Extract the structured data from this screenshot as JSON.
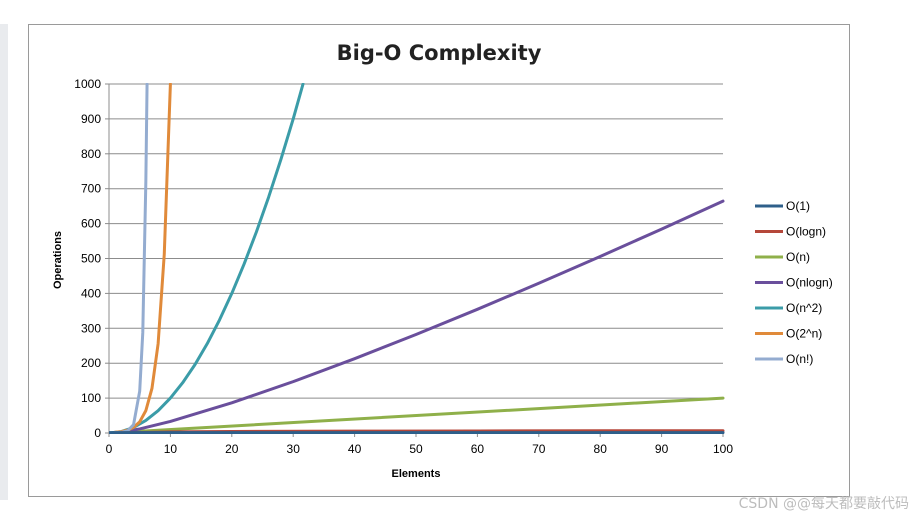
{
  "watermark": "CSDN @@每天都要敲代码",
  "chart_data": {
    "type": "line",
    "title": "Big-O Complexity",
    "xlabel": "Elements",
    "ylabel": "Operations",
    "xlim": [
      0,
      100
    ],
    "ylim": [
      0,
      1000
    ],
    "xticks": [
      0,
      10,
      20,
      30,
      40,
      50,
      60,
      70,
      80,
      90,
      100
    ],
    "yticks": [
      0,
      100,
      200,
      300,
      400,
      500,
      600,
      700,
      800,
      900,
      1000
    ],
    "grid": "horizontal",
    "legend_position": "right",
    "series": [
      {
        "name": "O(1)",
        "color": "#2e5f8a",
        "x": [
          0,
          100
        ],
        "y": [
          1,
          1
        ]
      },
      {
        "name": "O(logn)",
        "color": "#b5473a",
        "x": [
          1,
          10,
          20,
          40,
          60,
          80,
          100
        ],
        "y": [
          0,
          3.3,
          4.3,
          5.3,
          5.9,
          6.3,
          6.6
        ]
      },
      {
        "name": "O(n)",
        "color": "#8fb04a",
        "x": [
          0,
          100
        ],
        "y": [
          0,
          100
        ]
      },
      {
        "name": "O(nlogn)",
        "color": "#6a4f9c",
        "x": [
          1,
          5,
          10,
          20,
          30,
          40,
          50,
          60,
          70,
          80,
          90,
          100
        ],
        "y": [
          0,
          11.6,
          33.2,
          86.4,
          147.2,
          212.9,
          282.2,
          354.4,
          429.1,
          505.8,
          584.3,
          664.4
        ]
      },
      {
        "name": "O(n^2)",
        "color": "#3b9ca8",
        "x": [
          0,
          2,
          4,
          6,
          8,
          10,
          12,
          14,
          16,
          18,
          20,
          22,
          24,
          26,
          28,
          30,
          31.6
        ],
        "y": [
          0,
          4,
          16,
          36,
          64,
          100,
          144,
          196,
          256,
          324,
          400,
          484,
          576,
          676,
          784,
          900,
          1000
        ]
      },
      {
        "name": "O(2^n)",
        "color": "#e08a3a",
        "x": [
          1,
          2,
          3,
          4,
          5,
          6,
          7,
          8,
          9,
          10
        ],
        "y": [
          2,
          4,
          8,
          16,
          32,
          64,
          128,
          256,
          512,
          1000
        ]
      },
      {
        "name": "O(n!)",
        "color": "#94acd0",
        "x": [
          1,
          2,
          3,
          4,
          5,
          5.5,
          6,
          6.2
        ],
        "y": [
          1,
          2,
          6,
          24,
          120,
          287,
          720,
          1000
        ]
      }
    ]
  }
}
